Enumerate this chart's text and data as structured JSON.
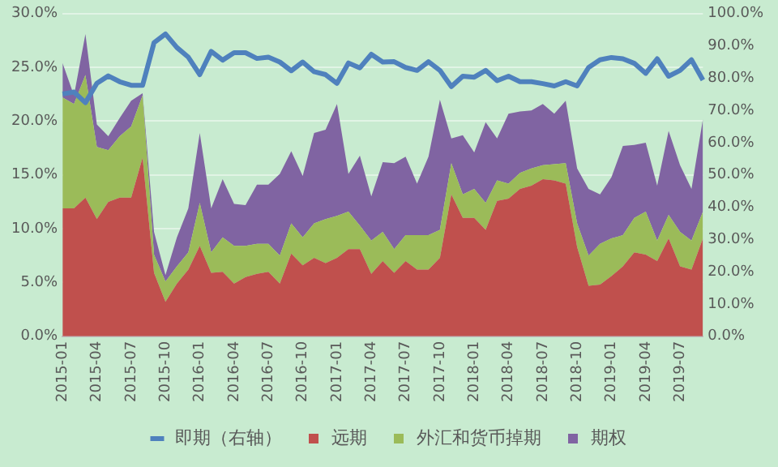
{
  "chart_data": {
    "type": "area",
    "stacked": true,
    "categories": [
      "2015-01",
      null,
      null,
      "2015-04",
      null,
      null,
      "2015-07",
      null,
      null,
      "2015-10",
      null,
      null,
      "2016-01",
      null,
      null,
      "2016-04",
      null,
      null,
      "2016-07",
      null,
      null,
      "2016-10",
      null,
      null,
      "2017-01",
      null,
      null,
      "2017-04",
      null,
      null,
      "2017-07",
      null,
      null,
      "2017-10",
      null,
      null,
      "2018-01",
      null,
      null,
      "2018-04",
      null,
      null,
      "2018-07",
      null,
      null,
      "2018-10",
      null,
      null,
      "2019-01",
      null,
      null,
      "2019-04",
      null,
      null,
      "2019-07",
      null,
      null
    ],
    "series": [
      {
        "name": "远期",
        "color": "#c0504d",
        "values": [
          11.9,
          11.9,
          12.9,
          10.9,
          12.5,
          12.9,
          12.9,
          16.6,
          5.9,
          3.2,
          4.9,
          6.2,
          8.4,
          5.9,
          6.0,
          4.9,
          5.5,
          5.8,
          6.0,
          4.9,
          7.7,
          6.6,
          7.3,
          6.8,
          7.3,
          8.1,
          8.1,
          5.8,
          7.0,
          5.9,
          7.0,
          6.2,
          6.2,
          7.3,
          13.2,
          11.0,
          11.0,
          9.9,
          12.6,
          12.8,
          13.7,
          14.0,
          14.6,
          14.5,
          14.2,
          8.3,
          4.7,
          4.8,
          5.6,
          6.5,
          7.8,
          7.6,
          7.0,
          9.1,
          6.5,
          6.2,
          9.1
        ]
      },
      {
        "name": "外汇和货币掉期",
        "color": "#9bbb59",
        "values": [
          10.3,
          9.7,
          11.4,
          6.7,
          4.8,
          5.7,
          6.6,
          5.8,
          1.7,
          1.9,
          1.6,
          1.6,
          4.0,
          1.9,
          3.2,
          3.5,
          2.9,
          2.8,
          2.6,
          2.6,
          2.8,
          2.6,
          3.2,
          4.1,
          3.9,
          3.5,
          2.2,
          3.1,
          2.7,
          2.2,
          2.4,
          3.2,
          3.2,
          2.6,
          2.9,
          2.2,
          2.7,
          2.5,
          1.9,
          1.4,
          1.5,
          1.6,
          1.3,
          1.5,
          1.9,
          2.2,
          2.8,
          3.8,
          3.5,
          2.9,
          3.2,
          4.0,
          1.9,
          2.2,
          3.2,
          2.7,
          2.5
        ]
      },
      {
        "name": "期权",
        "color": "#8064a2",
        "values": [
          3.2,
          0.8,
          3.8,
          2.1,
          1.3,
          1.7,
          2.4,
          0.2,
          2.1,
          0.6,
          2.7,
          4.1,
          6.5,
          4.1,
          5.4,
          3.9,
          3.8,
          5.5,
          5.5,
          7.6,
          6.7,
          5.7,
          8.4,
          8.3,
          10.4,
          3.5,
          6.5,
          4.1,
          6.5,
          8.0,
          7.3,
          4.8,
          7.3,
          12.1,
          2.3,
          5.5,
          3.4,
          7.5,
          3.9,
          6.5,
          5.7,
          5.4,
          5.7,
          4.7,
          5.8,
          5.1,
          6.2,
          4.6,
          5.7,
          8.3,
          6.8,
          6.4,
          5.1,
          7.8,
          6.2,
          4.8,
          8.6
        ]
      },
      {
        "name": "即期（右轴）",
        "type": "line",
        "axis": "y2",
        "color": "#4f81bd",
        "values": [
          75.1,
          75.7,
          72.4,
          78.4,
          80.7,
          78.9,
          77.8,
          77.8,
          91.0,
          93.7,
          89.5,
          86.5,
          81.1,
          88.3,
          85.6,
          87.9,
          87.9,
          86.1,
          86.5,
          85.0,
          82.3,
          85.0,
          82.0,
          81.1,
          78.4,
          84.7,
          83.2,
          87.4,
          85.0,
          85.1,
          83.3,
          82.4,
          85.1,
          82.4,
          77.4,
          80.6,
          80.3,
          82.4,
          79.2,
          80.6,
          78.9,
          78.9,
          78.3,
          77.6,
          78.9,
          77.6,
          83.3,
          85.7,
          86.4,
          86.0,
          84.6,
          81.5,
          86.0,
          80.6,
          82.4,
          85.7,
          79.4
        ]
      }
    ],
    "ylim": [
      0,
      30
    ],
    "yticks": [
      {
        "value": 0,
        "label": "0.0%"
      },
      {
        "value": 5,
        "label": "5.0%"
      },
      {
        "value": 10,
        "label": "10.0%"
      },
      {
        "value": 15,
        "label": "15.0%"
      },
      {
        "value": 20,
        "label": "20.0%"
      },
      {
        "value": 25,
        "label": "25.0%"
      },
      {
        "value": 30,
        "label": "30.0%"
      }
    ],
    "y2lim": [
      0,
      100
    ],
    "y2ticks": [
      {
        "value": 0,
        "label": "0.0%"
      },
      {
        "value": 10,
        "label": "10.0%"
      },
      {
        "value": 20,
        "label": "20.0%"
      },
      {
        "value": 30,
        "label": "30.0%"
      },
      {
        "value": 40,
        "label": "40.0%"
      },
      {
        "value": 50,
        "label": "50.0%"
      },
      {
        "value": 60,
        "label": "60.0%"
      },
      {
        "value": 70,
        "label": "70.0%"
      },
      {
        "value": 80,
        "label": "80.0%"
      },
      {
        "value": 90,
        "label": "90.0%"
      },
      {
        "value": 100,
        "label": "100.0%"
      }
    ],
    "grid": "y",
    "legend": "bottom",
    "marker": "none"
  }
}
